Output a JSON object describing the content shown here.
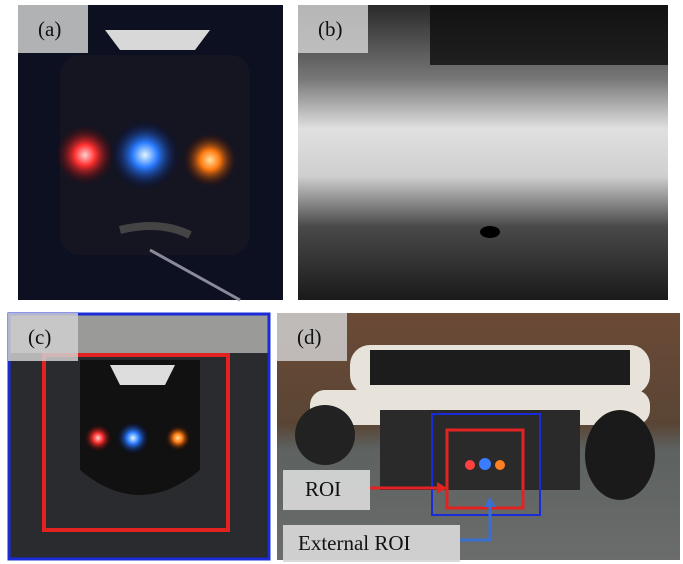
{
  "panels": [
    {
      "label": "(a)"
    },
    {
      "label": "(b)"
    },
    {
      "label": "(c)"
    },
    {
      "label": "(d)",
      "annotations": [
        "ROI",
        "External ROI"
      ]
    }
  ]
}
